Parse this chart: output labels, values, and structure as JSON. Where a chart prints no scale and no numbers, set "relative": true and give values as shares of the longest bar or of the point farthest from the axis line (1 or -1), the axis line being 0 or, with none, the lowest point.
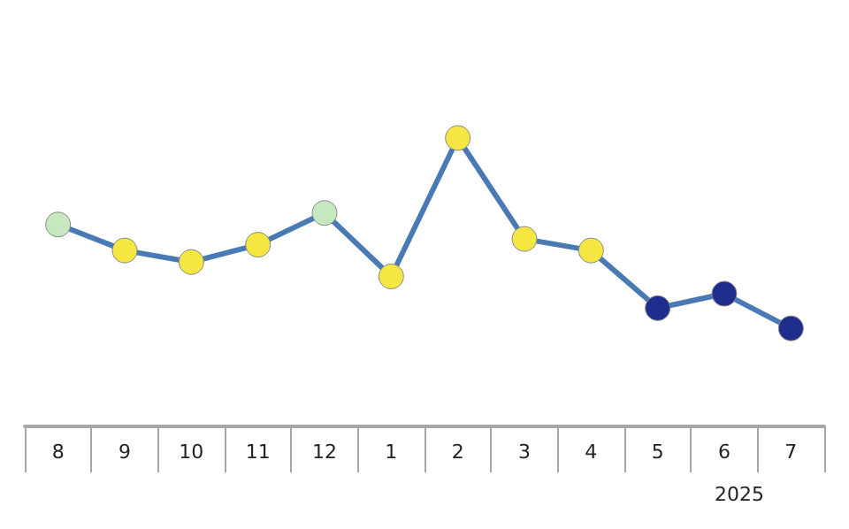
{
  "chart_data": {
    "type": "line",
    "relative": true,
    "categories": [
      "8",
      "9",
      "10",
      "11",
      "12",
      "1",
      "2",
      "3",
      "4",
      "5",
      "6",
      "7"
    ],
    "series": [
      {
        "color": "#4a7ab5",
        "values": [
          0.7,
          0.61,
          0.57,
          0.63,
          0.74,
          0.52,
          1,
          0.65,
          0.61,
          0.41,
          0.46,
          0.34
        ],
        "colors": [
          "#c6e8bf",
          "#f5e642",
          "#f5e642",
          "#f5e642",
          "#c6e8bf",
          "#f5e642",
          "#f5e642",
          "#f5e642",
          "#f5e642",
          "#1f2d8c",
          "#1f2d8c",
          "#1f2d8c"
        ]
      }
    ],
    "marker": "circle",
    "line_style": "solid",
    "grid": false,
    "annotations": [
      "2025"
    ]
  }
}
